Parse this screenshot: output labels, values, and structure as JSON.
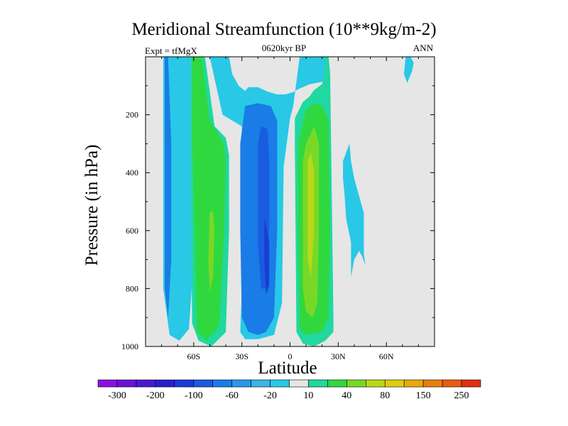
{
  "chart_data": {
    "type": "heatmap",
    "title": "Meridional Streamfunction (10**9kg/m-2)",
    "subtitle": "0620kyr BP",
    "left_label": "Expt = tfMgX",
    "right_label": "ANN",
    "xlabel": "Latitude",
    "ylabel": "Pressure (in hPa)",
    "xlim": [
      -90,
      90
    ],
    "ylim": [
      1000,
      0
    ],
    "x_ticks": [
      {
        "value": -60,
        "label": "60S"
      },
      {
        "value": -30,
        "label": "30S"
      },
      {
        "value": 0,
        "label": "0"
      },
      {
        "value": 30,
        "label": "30N"
      },
      {
        "value": 60,
        "label": "60N"
      }
    ],
    "y_ticks": [
      {
        "value": 200,
        "label": "200"
      },
      {
        "value": 400,
        "label": "400"
      },
      {
        "value": 600,
        "label": "600"
      },
      {
        "value": 800,
        "label": "800"
      },
      {
        "value": 1000,
        "label": "1000"
      }
    ],
    "background_color": "#e6e6e6",
    "colorbar": {
      "labels": [
        "-300",
        "-200",
        "-100",
        "-60",
        "-20",
        "10",
        "40",
        "80",
        "150",
        "250"
      ],
      "colors": [
        "#8a12e0",
        "#6a14d8",
        "#4a1ad0",
        "#2a20cc",
        "#1a3cd4",
        "#1a5ce0",
        "#1a7ce6",
        "#2a98e8",
        "#3ab4ea",
        "#28c8e6",
        "#e6e6e6",
        "#20d8a0",
        "#30d840",
        "#78d828",
        "#b8d818",
        "#e0cc10",
        "#e8a810",
        "#e88010",
        "#e85c10",
        "#e03010"
      ]
    },
    "regions": [
      {
        "level": "-20",
        "color": "#28c8e6",
        "x": [
          -79,
          -78,
          -78,
          -71,
          -67,
          -62,
          -62,
          -60,
          -63,
          -69,
          -75,
          -79,
          -79
        ],
        "y": [
          0,
          0,
          0,
          0,
          0,
          0,
          300,
          700,
          940,
          980,
          960,
          800,
          300
        ]
      },
      {
        "level": "-60",
        "color": "#1a7ce6",
        "x": [
          -78,
          -76,
          -74,
          -74,
          -76,
          -78,
          -78
        ],
        "y": [
          0,
          0,
          300,
          700,
          900,
          800,
          300
        ]
      },
      {
        "level": "10",
        "color": "#20d8a0",
        "x": [
          -62,
          -53,
          -47,
          -40,
          -38,
          -38,
          -40,
          -49,
          -57,
          -61,
          -62
        ],
        "y": [
          0,
          0,
          240,
          280,
          340,
          600,
          950,
          1000,
          980,
          920,
          300
        ]
      },
      {
        "level": "40",
        "color": "#30d840",
        "x": [
          -61,
          -55,
          -50,
          -42,
          -40,
          -41,
          -44,
          -52,
          -58,
          -61
        ],
        "y": [
          0,
          0,
          220,
          290,
          350,
          600,
          930,
          980,
          950,
          300
        ]
      },
      {
        "level": "80",
        "color": "#78d828",
        "x": [
          -50,
          -48,
          -47,
          -48,
          -50,
          -51,
          -50
        ],
        "y": [
          540,
          530,
          600,
          760,
          810,
          700,
          540
        ]
      },
      {
        "level": "-20",
        "color": "#28c8e6",
        "x": [
          -50,
          -38,
          -36,
          -32,
          -28,
          -26,
          -20,
          -14,
          -8,
          -3,
          2,
          5,
          12,
          22,
          22,
          20,
          10,
          6,
          2,
          0,
          -4,
          -5,
          -10,
          -20,
          -28,
          -31,
          -30,
          -29,
          -30,
          -36,
          -42,
          -50
        ],
        "y": [
          0,
          0,
          60,
          100,
          118,
          105,
          105,
          120,
          130,
          130,
          122,
          112,
          95,
          84,
          0,
          0,
          0,
          0,
          170,
          212,
          380,
          850,
          960,
          975,
          975,
          950,
          800,
          600,
          240,
          220,
          200,
          0
        ]
      },
      {
        "level": "-20",
        "color": "#28c8e6",
        "x": [
          72,
          75,
          77,
          76,
          73,
          71,
          72
        ],
        "y": [
          0,
          0,
          20,
          50,
          90,
          60,
          0
        ]
      },
      {
        "level": "-60",
        "color": "#1a7ce6",
        "x": [
          -31,
          -28,
          -20,
          -12,
          -8,
          -8,
          -10,
          -15,
          -20,
          -26,
          -30,
          -31
        ],
        "y": [
          300,
          170,
          160,
          170,
          220,
          600,
          900,
          950,
          960,
          950,
          900,
          600
        ]
      },
      {
        "level": "-100",
        "color": "#1a5ce0",
        "x": [
          -20,
          -18,
          -14,
          -13,
          -13,
          -15,
          -18,
          -20,
          -20
        ],
        "y": [
          300,
          240,
          250,
          350,
          600,
          800,
          800,
          650,
          400
        ]
      },
      {
        "level": "-300",
        "color": "#1a3cd4",
        "x": [
          -16,
          -15,
          -13,
          -13,
          -15,
          -16,
          -16
        ],
        "y": [
          560,
          580,
          640,
          790,
          820,
          700,
          600
        ]
      },
      {
        "level": "10",
        "color": "#20d8a0",
        "x": [
          3,
          8,
          12,
          15,
          20,
          21,
          22,
          24,
          25,
          27,
          27,
          22,
          15,
          8,
          4,
          3
        ],
        "y": [
          212,
          156,
          138,
          115,
          94,
          70,
          0,
          0,
          60,
          900,
          950,
          980,
          1000,
          990,
          950,
          300
        ]
      },
      {
        "level": "40",
        "color": "#30d840",
        "x": [
          5,
          10,
          16,
          20,
          24,
          25,
          24,
          20,
          10,
          6,
          5
        ],
        "y": [
          300,
          180,
          160,
          170,
          220,
          600,
          900,
          950,
          960,
          940,
          600
        ]
      },
      {
        "level": "80",
        "color": "#78d828",
        "x": [
          8,
          10,
          15,
          18,
          18,
          17,
          14,
          10,
          8,
          8
        ],
        "y": [
          360,
          300,
          240,
          300,
          600,
          850,
          900,
          880,
          800,
          600
        ]
      },
      {
        "level": "150",
        "color": "#b8d818",
        "x": [
          11,
          13,
          15,
          15,
          13,
          11,
          11
        ],
        "y": [
          360,
          330,
          400,
          600,
          760,
          700,
          500
        ]
      },
      {
        "level": "-20",
        "color": "#28c8e6",
        "x": [
          33,
          35,
          37,
          38,
          40,
          43,
          46,
          46,
          47,
          45,
          43,
          40,
          38,
          38,
          35,
          34,
          33
        ],
        "y": [
          360,
          330,
          300,
          360,
          420,
          480,
          540,
          680,
          720,
          690,
          670,
          700,
          760,
          640,
          560,
          480,
          420
        ]
      },
      {
        "level": "-20",
        "color": "#28c8e6",
        "x": [
          40,
          43,
          44,
          44,
          41,
          40,
          40
        ],
        "y": [
          520,
          500,
          540,
          600,
          660,
          640,
          560
        ]
      }
    ]
  }
}
